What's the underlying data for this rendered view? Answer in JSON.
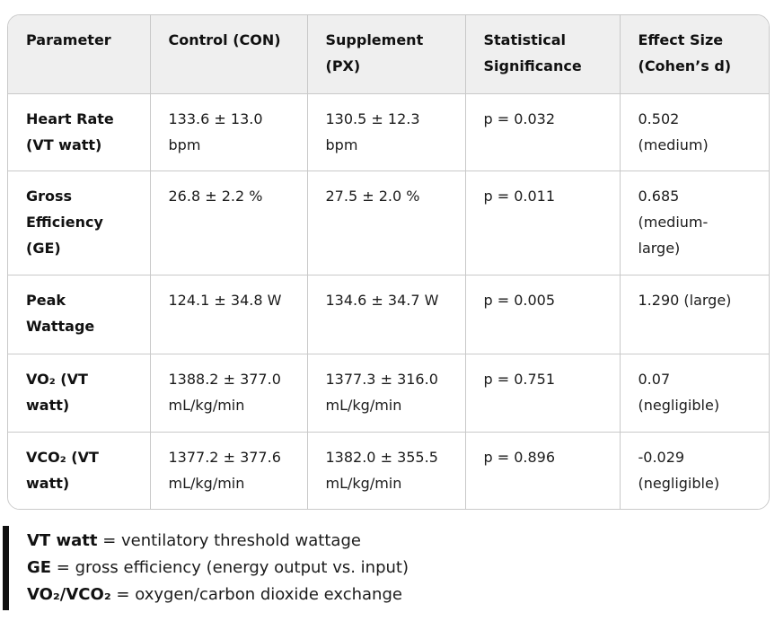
{
  "colors": {
    "header_background": "#efefef",
    "table_border": "#c9c9c9",
    "text": "#1b1b1b",
    "note_bar": "#111111"
  },
  "table": {
    "columns": [
      "Parameter",
      "Control (CON)",
      "Supplement (PX)",
      "Statistical Significance",
      "Effect Size (Cohen’s d)"
    ],
    "rows": [
      {
        "parameter": "Heart Rate (VT watt)",
        "control": "133.6 ± 13.0 bpm",
        "supplement": "130.5 ± 12.3 bpm",
        "significance": "p = 0.032",
        "effect": "0.502 (medium)"
      },
      {
        "parameter": "Gross Efficiency (GE)",
        "control": "26.8 ± 2.2 %",
        "supplement": "27.5 ± 2.0 %",
        "significance": "p = 0.011",
        "effect": "0.685 (medium-large)"
      },
      {
        "parameter": "Peak Wattage",
        "control": "124.1 ± 34.8 W",
        "supplement": "134.6 ± 34.7 W",
        "significance": "p = 0.005",
        "effect": "1.290 (large)"
      },
      {
        "parameter": "VO₂ (VT watt)",
        "control": "1388.2 ± 377.0 mL/kg/min",
        "supplement": "1377.3 ± 316.0 mL/kg/min",
        "significance": "p = 0.751",
        "effect": "0.07 (negligible)"
      },
      {
        "parameter": "VCO₂ (VT watt)",
        "control": "1377.2 ± 377.6 mL/kg/min",
        "supplement": "1382.0 ± 355.5 mL/kg/min",
        "significance": "p = 0.896",
        "effect": "-0.029 (negligible)"
      }
    ]
  },
  "notes": [
    {
      "term": "VT watt",
      "definition": " = ventilatory threshold wattage"
    },
    {
      "term": "GE",
      "definition": " = gross efficiency (energy output vs. input)"
    },
    {
      "term": "VO₂/VCO₂",
      "definition": " = oxygen/carbon dioxide exchange"
    }
  ]
}
